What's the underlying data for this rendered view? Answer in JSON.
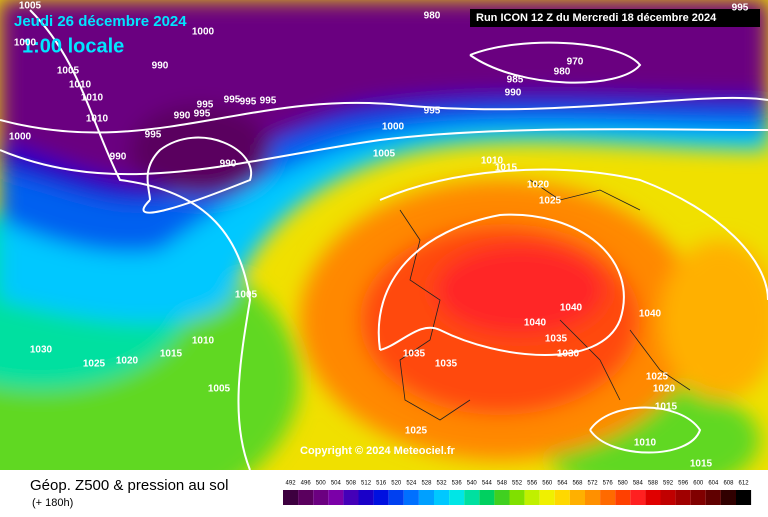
{
  "header": {
    "date": "Jeudi 26 décembre 2024",
    "time": "1:00 locale",
    "run": "Run ICON 12 Z du Mercredi 18 décembre 2024"
  },
  "copyright": "Copyright © 2024 Meteociel.fr",
  "footer": {
    "title": "Géop. Z500 & pression au sol",
    "lead": "(+ 180h)"
  },
  "legend": {
    "values": [
      492,
      496,
      500,
      504,
      508,
      512,
      516,
      520,
      524,
      528,
      532,
      536,
      540,
      544,
      548,
      552,
      556,
      560,
      564,
      568,
      572,
      576,
      580,
      584,
      588,
      592,
      596,
      600,
      604,
      608,
      612
    ],
    "colors": [
      "#3d003f",
      "#5a005e",
      "#6b0080",
      "#7b00a8",
      "#4400b8",
      "#1a00c8",
      "#0010e0",
      "#0040f0",
      "#0070ff",
      "#00a0ff",
      "#00c8ff",
      "#00e6e6",
      "#00e0a0",
      "#00d060",
      "#40d020",
      "#80e000",
      "#c0f000",
      "#f0f000",
      "#ffd800",
      "#ffb000",
      "#ff9000",
      "#ff6a00",
      "#ff4000",
      "#ff2020",
      "#e00000",
      "#c00000",
      "#a00000",
      "#800000",
      "#600000",
      "#300000",
      "#000000"
    ]
  },
  "isobars": [
    "1005",
    "1000",
    "980",
    "1000",
    "1005",
    "990",
    "1010",
    "1010",
    "1010",
    "995",
    "990",
    "995",
    "995",
    "995",
    "995",
    "995",
    "1000",
    "990",
    "990",
    "1000",
    "995",
    "1005",
    "985",
    "990",
    "980",
    "970",
    "1010",
    "1015",
    "1020",
    "1025",
    "1005",
    "1010",
    "1015",
    "1020",
    "1025",
    "1030",
    "1005",
    "1035",
    "1035",
    "1040",
    "1040",
    "1035",
    "1040",
    "1030",
    "1025",
    "1020",
    "1015",
    "1025",
    "1010",
    "1015",
    "995"
  ]
}
